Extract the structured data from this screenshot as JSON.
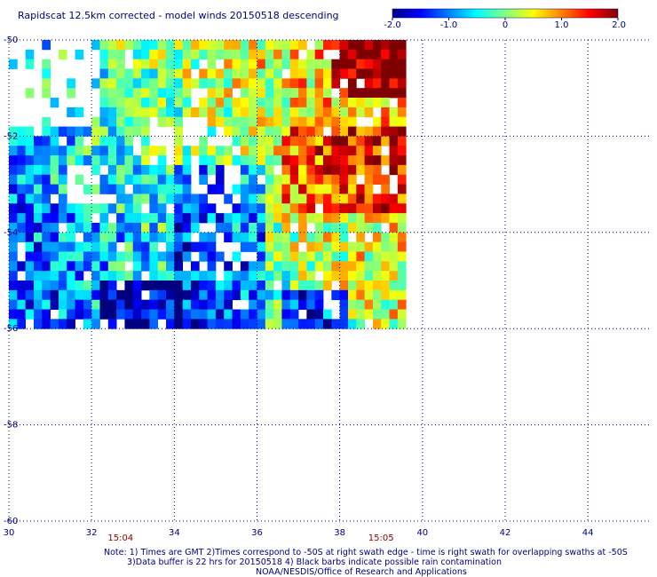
{
  "chart_data": {
    "type": "heatmap",
    "title": "Rapidscat 12.5km corrected - model winds 20150518 descending",
    "xlim": [
      30,
      45.5
    ],
    "ylim": [
      -60,
      -50
    ],
    "x_ticks": [
      "30",
      "32",
      "34",
      "36",
      "38",
      "40",
      "42",
      "44"
    ],
    "y_ticks": [
      "-50",
      "-52",
      "-54",
      "-56",
      "-58",
      "-60"
    ],
    "grid": true,
    "colorbar": {
      "range": [
        -2.0,
        2.0
      ],
      "tick_labels": [
        "-2.0",
        "-1.0",
        "0",
        "1.0",
        "2.0"
      ],
      "tick_values": [
        -2.0,
        -1.0,
        0,
        1.0,
        2.0
      ]
    },
    "time_labels": [
      {
        "text": "15:04",
        "lon": 32.7
      },
      {
        "text": "15:05",
        "lon": 39.0
      }
    ],
    "swath_extent": {
      "lon": [
        30,
        39.5
      ],
      "lat": [
        -56,
        -50
      ]
    },
    "cell_size_deg": 0.2,
    "seed": 20150518
  },
  "notes": [
    "Note: 1) Times are GMT 2)Times correspond to -50S at right swath edge - time is right swath for overlapping swaths at -50S",
    "3)Data buffer is 22 hrs for 20150518 4) Black barbs indicate possible rain contamination",
    "NOAA/NESDIS/Office of Research and Applications"
  ],
  "colors": {
    "background": "#ffffff",
    "grid": "#000080",
    "labels": "#000080",
    "time": "#8b0000"
  }
}
